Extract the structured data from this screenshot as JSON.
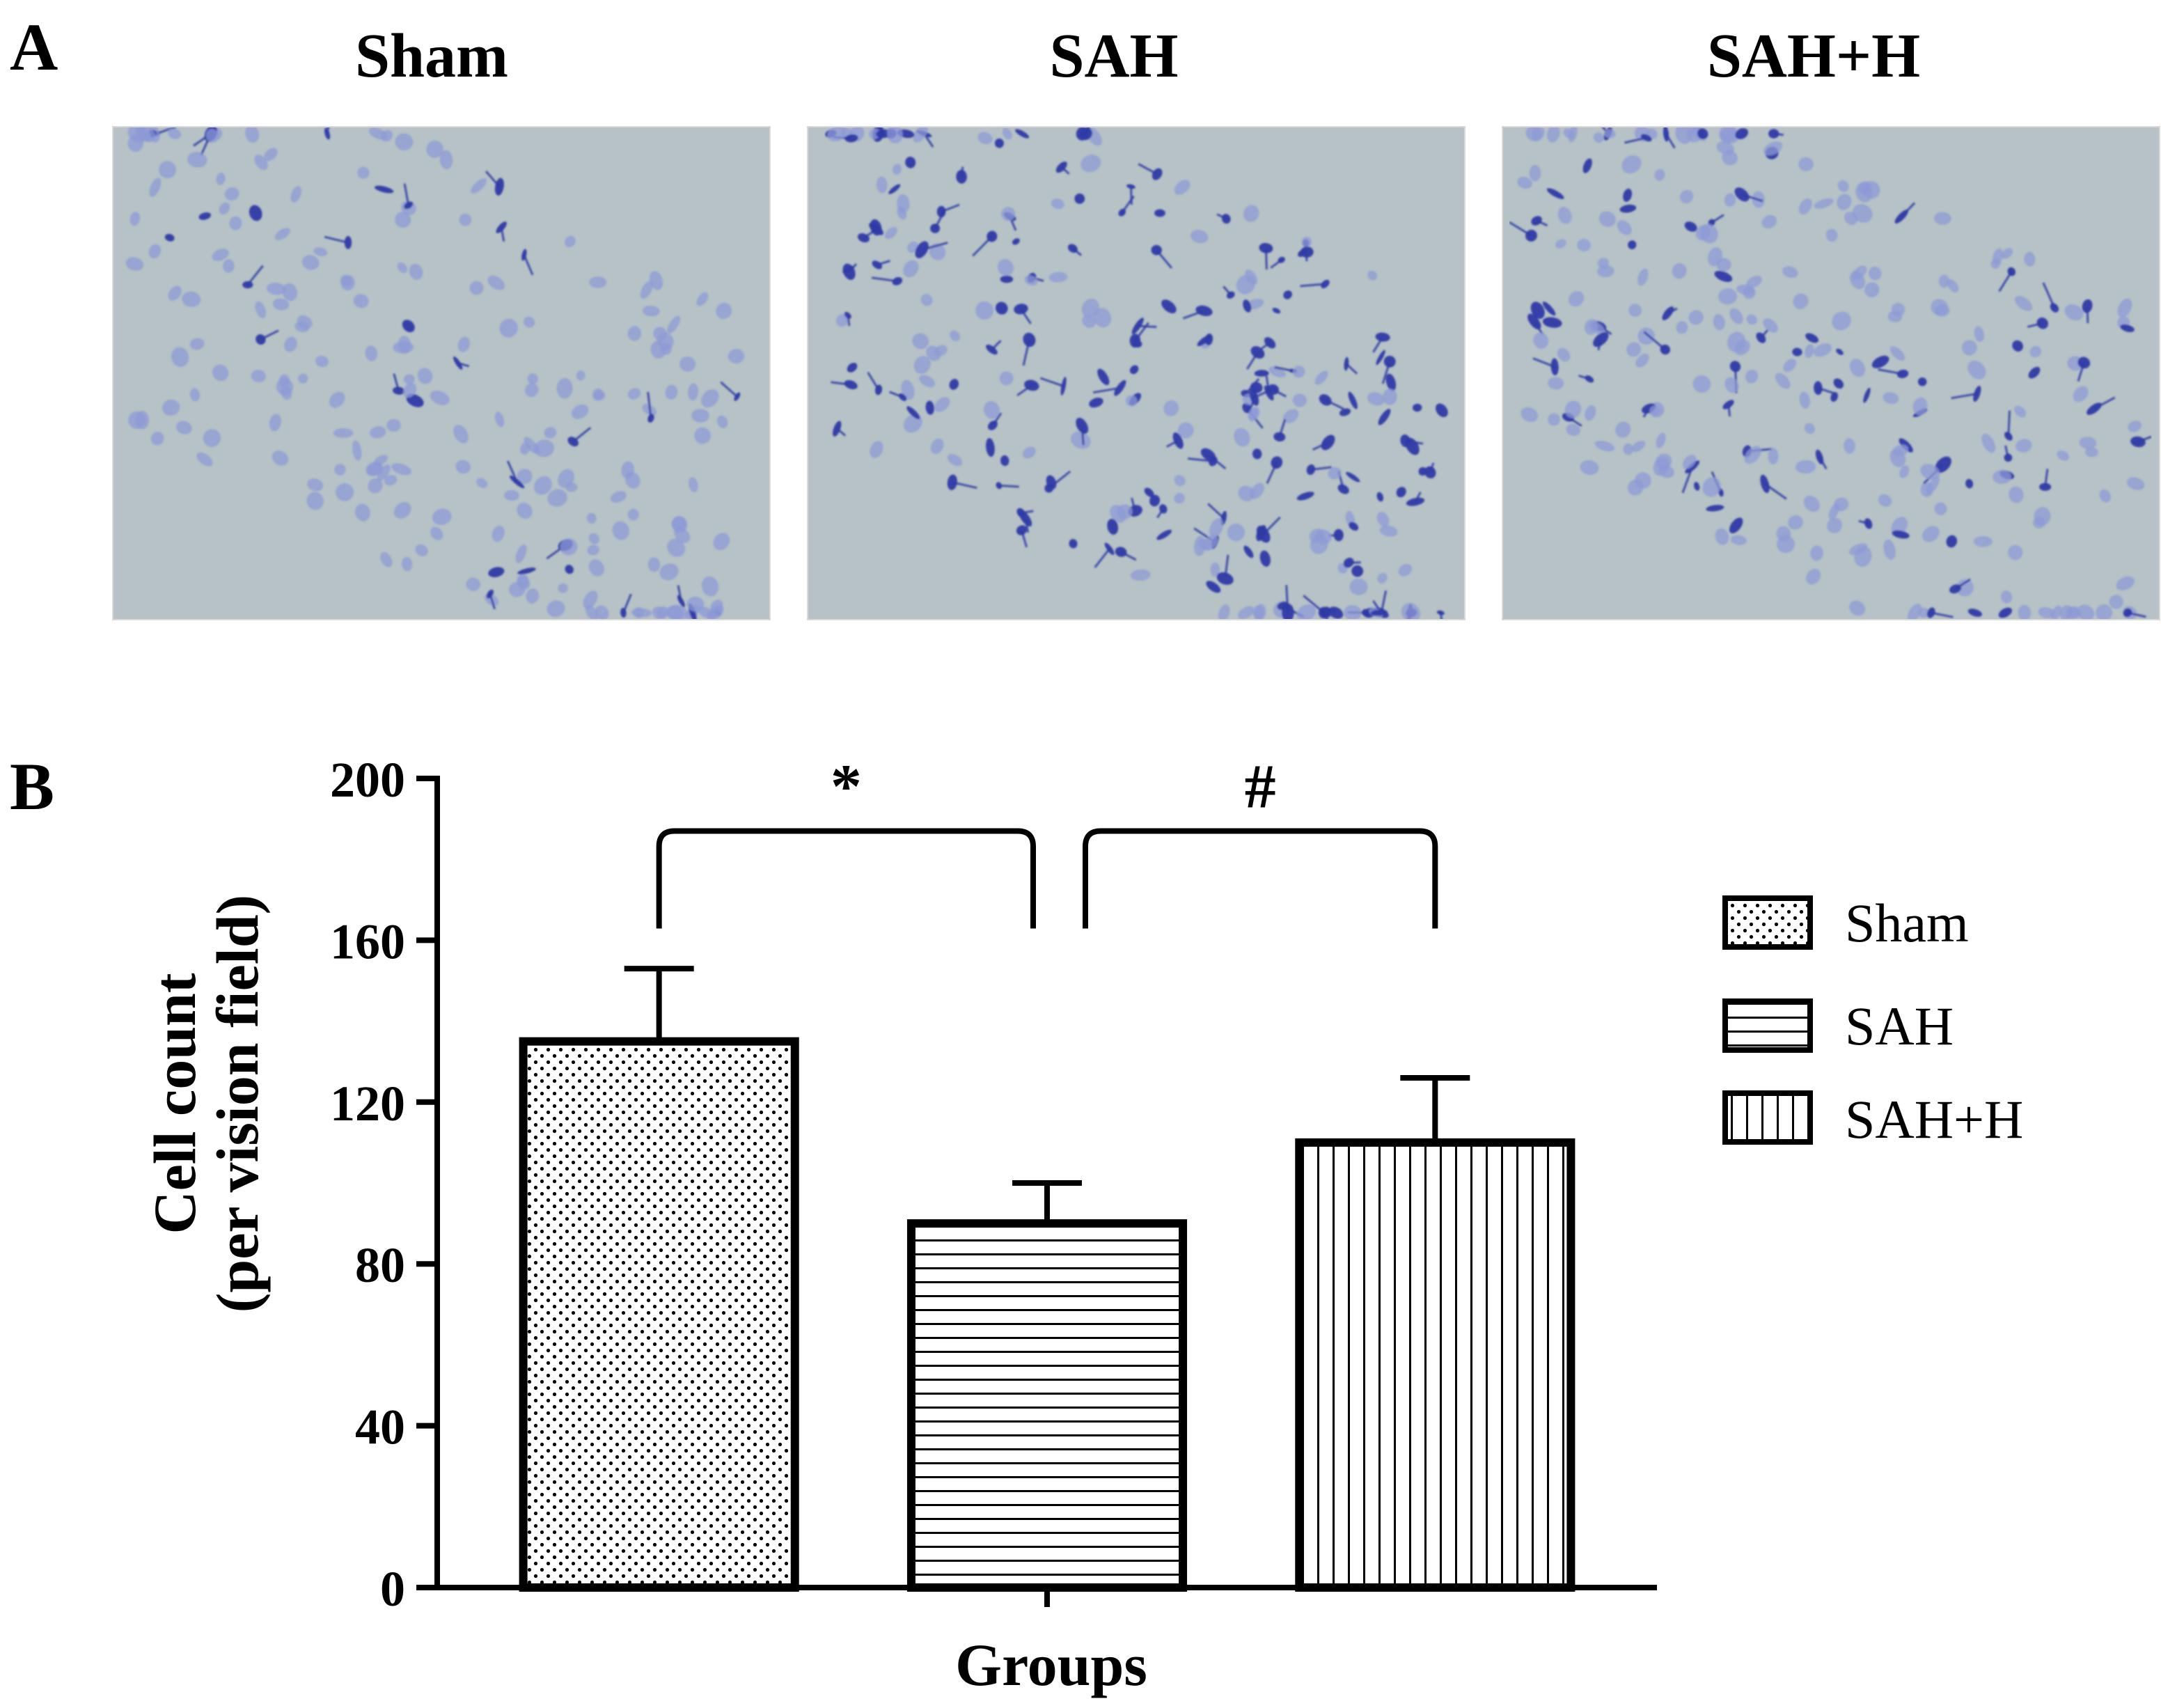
{
  "panel_a": {
    "label": "A",
    "column_titles": [
      "Sham",
      "SAH",
      "SAH+H"
    ],
    "stain_colors": {
      "background": "#b6c2c6",
      "cell_dark": "#2e3aa6",
      "cell_light": "#8e9ad6"
    }
  },
  "panel_b": {
    "label": "B"
  },
  "chart_data": {
    "type": "bar",
    "categories": [
      "Sham",
      "SAH",
      "SAH+H"
    ],
    "values": [
      135,
      90,
      110
    ],
    "errors": [
      18,
      10,
      16
    ],
    "fill_patterns": [
      "dots",
      "horizontal-lines",
      "vertical-lines"
    ],
    "xlabel": "Groups",
    "ylabel_lines": [
      "Cell count",
      "(per vision field)"
    ],
    "ylim": [
      0,
      200
    ],
    "yticks": [
      0,
      40,
      80,
      120,
      160,
      200
    ],
    "legend": {
      "position": "right",
      "entries": [
        "Sham",
        "SAH",
        "SAH+H"
      ]
    },
    "significance": [
      {
        "from": "Sham",
        "to": "SAH",
        "mark": "*"
      },
      {
        "from": "SAH",
        "to": "SAH+H",
        "mark": "#"
      }
    ],
    "grid": false
  }
}
